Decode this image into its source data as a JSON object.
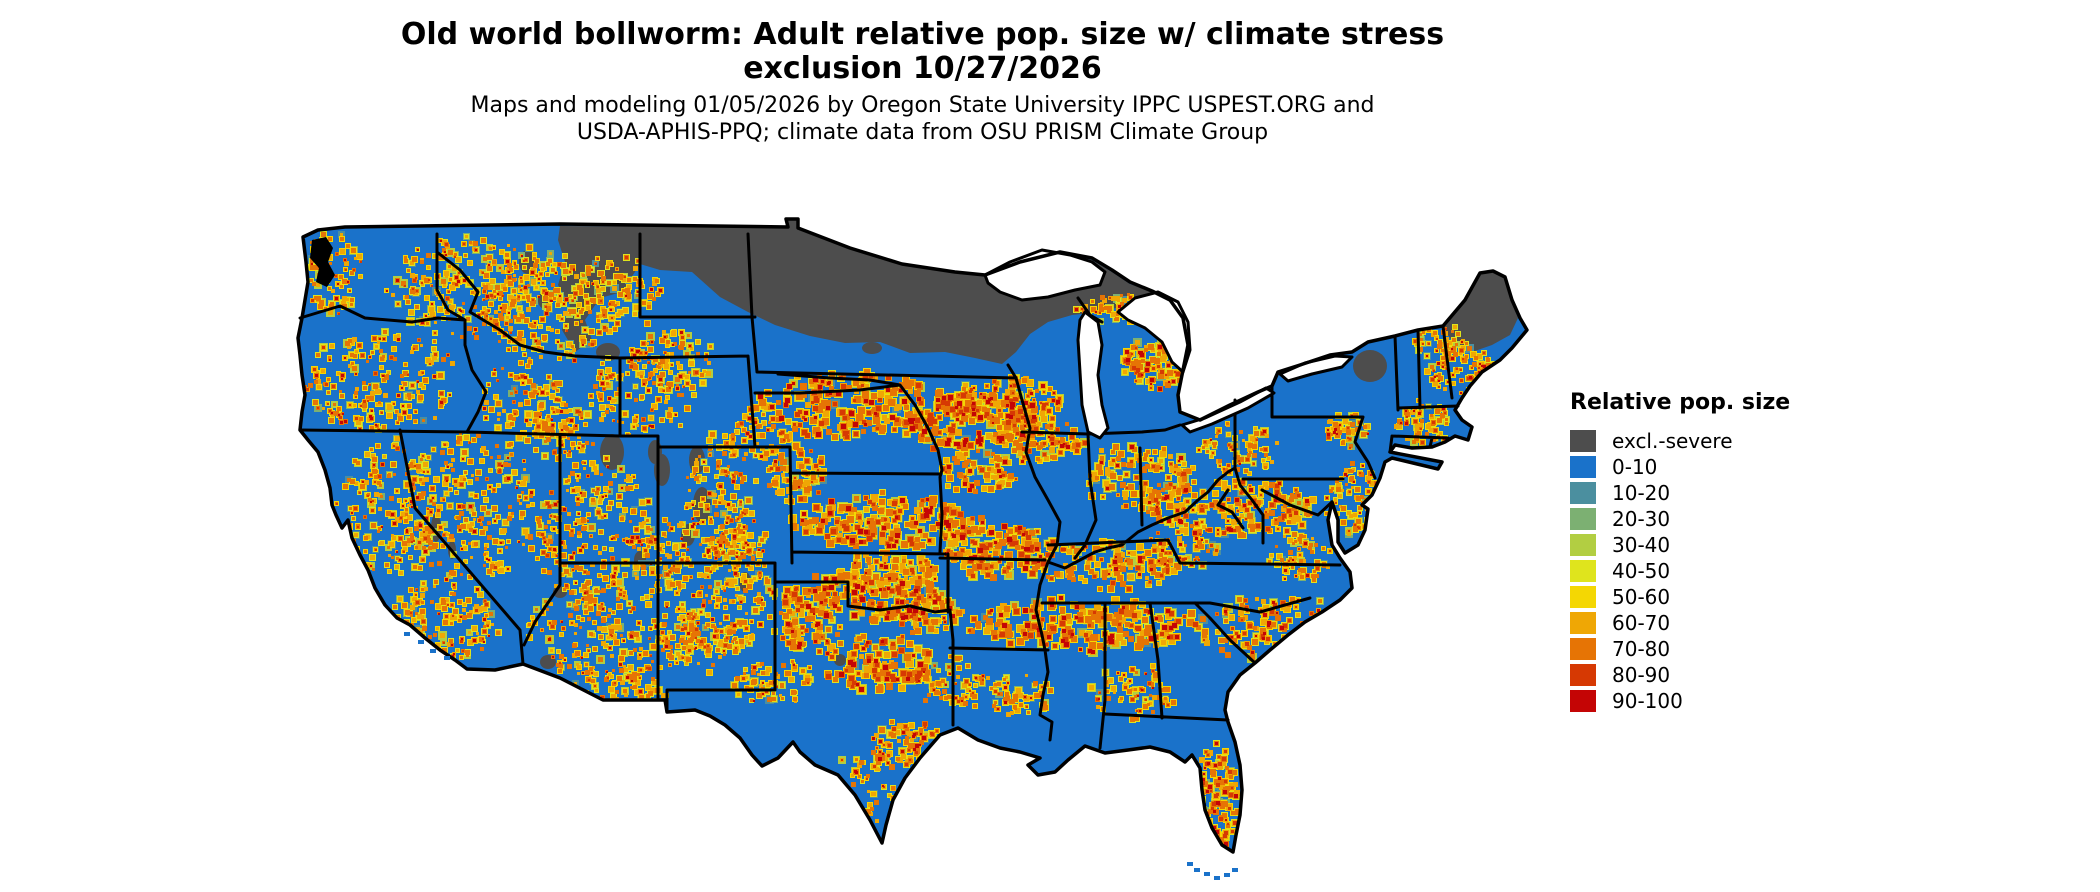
{
  "title": {
    "line1": "Old world bollworm: Adult relative pop. size w/ climate stress",
    "line2": "exclusion 10/27/2026"
  },
  "subtitle": {
    "line1": "Maps and modeling 01/05/2026 by Oregon State University IPPC USPEST.ORG and",
    "line2": "USDA-APHIS-PPQ; climate data from OSU PRISM Climate Group"
  },
  "legend": {
    "title": "Relative pop. size",
    "items": [
      {
        "label": "excl.-severe",
        "color": "#4d4d4d"
      },
      {
        "label": "0-10",
        "color": "#1a72ca"
      },
      {
        "label": "10-20",
        "color": "#4b8f9f"
      },
      {
        "label": "20-30",
        "color": "#7cb072"
      },
      {
        "label": "30-40",
        "color": "#b2ce42"
      },
      {
        "label": "40-50",
        "color": "#dfe41d"
      },
      {
        "label": "50-60",
        "color": "#f4d703"
      },
      {
        "label": "60-70",
        "color": "#efa705"
      },
      {
        "label": "70-80",
        "color": "#e67405"
      },
      {
        "label": "80-90",
        "color": "#d63903"
      },
      {
        "label": "90-100",
        "color": "#c40505"
      }
    ]
  },
  "map": {
    "water_color": "#ffffff",
    "state_border_color": "#000000",
    "base_fill": "#1a72ca",
    "exclusion_fill": "#4d4d4d"
  }
}
